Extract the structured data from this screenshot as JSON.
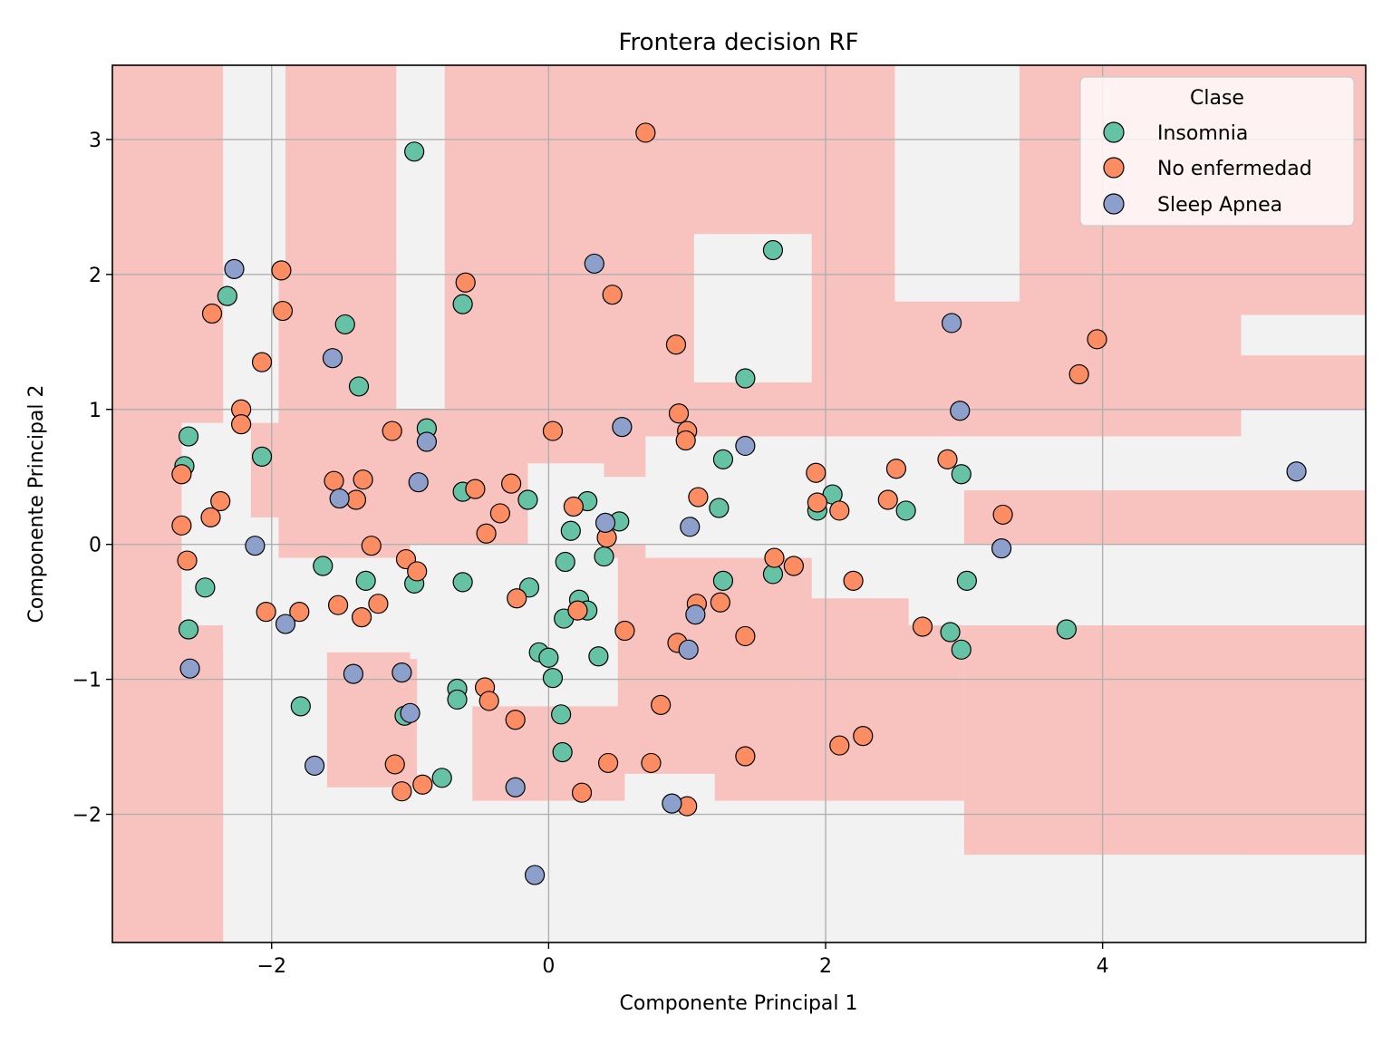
{
  "chart_data": {
    "type": "scatter",
    "title": "Frontera decision RF",
    "xlabel": "Componente Principal 1",
    "ylabel": "Componente Principal 2",
    "xlim": [
      -3.15,
      5.9
    ],
    "ylim": [
      -2.95,
      3.55
    ],
    "xticks": [
      -2,
      0,
      2,
      4
    ],
    "yticks": [
      -2,
      -1,
      0,
      1,
      2,
      3
    ],
    "xtick_labels": [
      "−2",
      "0",
      "2",
      "4"
    ],
    "ytick_labels": [
      "−2",
      "−1",
      "0",
      "1",
      "2",
      "3"
    ],
    "grid": true,
    "legend_title": "Clase",
    "legend_position": "top-right",
    "background": {
      "description_colors": {
        "No enfermedad": "#f8c3be",
        "other": "#f2f2f2"
      },
      "pink_regions": [
        [
          -3.15,
          -2.35,
          -2.95,
          3.55
        ],
        [
          -1.95,
          0.3,
          3.55,
          -0.1
        ],
        [
          -0.35,
          0.7,
          3.55,
          -0.1
        ],
        [
          0.2,
          5.0,
          3.55,
          0.8
        ],
        [
          0.5,
          1.9,
          -0.1,
          -1.7
        ],
        [
          1.2,
          3.0,
          -0.4,
          -1.9
        ],
        [
          3.0,
          5.9,
          0.4,
          -2.3
        ],
        [
          1.6,
          2.6,
          3.55,
          1.5
        ],
        [
          3.4,
          5.9,
          3.55,
          1.0
        ],
        [
          -1.6,
          -0.95,
          -0.6,
          -1.8
        ],
        [
          -0.55,
          0.55,
          -1.2,
          -1.9
        ],
        [
          -2.55,
          -1.2,
          0.9,
          0.2
        ]
      ],
      "grey_regions": [
        [
          -2.65,
          -2.15,
          0.9,
          -0.6
        ],
        [
          -2.35,
          -0.85,
          -0.1,
          -0.8
        ],
        [
          -0.15,
          0.4,
          0.6,
          -0.9
        ],
        [
          0.3,
          2.6,
          0.5,
          0.0
        ],
        [
          2.6,
          5.9,
          0.0,
          -0.6
        ],
        [
          5.0,
          5.9,
          1.7,
          1.4
        ],
        [
          2.5,
          3.4,
          3.55,
          1.8
        ],
        [
          -2.35,
          -1.9,
          3.55,
          2.1
        ],
        [
          -1.1,
          -0.75,
          3.55,
          1.0
        ],
        [
          -0.95,
          -0.6,
          -1.25,
          -2.95
        ],
        [
          -0.3,
          0.55,
          -1.9,
          -2.95
        ],
        [
          3.1,
          5.0,
          -2.3,
          -2.95
        ],
        [
          1.05,
          1.9,
          2.3,
          1.2
        ],
        [
          -1.0,
          -0.1,
          0.0,
          -0.85
        ]
      ]
    },
    "series": [
      {
        "name": "Insomnia",
        "color": "#66c2a5",
        "points": [
          [
            -0.97,
            2.91
          ],
          [
            1.62,
            2.18
          ],
          [
            -2.32,
            1.84
          ],
          [
            -0.62,
            1.78
          ],
          [
            -1.47,
            1.63
          ],
          [
            -1.37,
            1.17
          ],
          [
            1.42,
            1.23
          ],
          [
            -2.6,
            0.8
          ],
          [
            -0.88,
            0.86
          ],
          [
            -2.63,
            0.58
          ],
          [
            -2.07,
            0.65
          ],
          [
            1.26,
            0.63
          ],
          [
            2.98,
            0.52
          ],
          [
            -0.62,
            0.39
          ],
          [
            -0.15,
            0.33
          ],
          [
            0.28,
            0.32
          ],
          [
            2.05,
            0.37
          ],
          [
            1.23,
            0.27
          ],
          [
            1.94,
            0.25
          ],
          [
            2.58,
            0.25
          ],
          [
            0.51,
            0.17
          ],
          [
            0.16,
            0.1
          ],
          [
            -1.63,
            -0.16
          ],
          [
            0.12,
            -0.13
          ],
          [
            0.4,
            -0.09
          ],
          [
            -1.32,
            -0.27
          ],
          [
            -0.97,
            -0.29
          ],
          [
            -0.62,
            -0.28
          ],
          [
            1.26,
            -0.27
          ],
          [
            1.62,
            -0.22
          ],
          [
            3.02,
            -0.27
          ],
          [
            -2.48,
            -0.32
          ],
          [
            -0.14,
            -0.32
          ],
          [
            0.22,
            -0.41
          ],
          [
            0.28,
            -0.49
          ],
          [
            0.11,
            -0.55
          ],
          [
            -2.6,
            -0.63
          ],
          [
            2.9,
            -0.65
          ],
          [
            3.74,
            -0.63
          ],
          [
            2.98,
            -0.78
          ],
          [
            0.36,
            -0.83
          ],
          [
            -0.07,
            -0.8
          ],
          [
            0.0,
            -0.84
          ],
          [
            0.03,
            -0.99
          ],
          [
            -0.66,
            -1.07
          ],
          [
            -0.66,
            -1.15
          ],
          [
            -1.79,
            -1.2
          ],
          [
            -1.04,
            -1.27
          ],
          [
            0.09,
            -1.26
          ],
          [
            0.1,
            -1.54
          ],
          [
            -0.77,
            -1.73
          ]
        ]
      },
      {
        "name": "No enfermedad",
        "color": "#fc8d62",
        "points": [
          [
            0.7,
            3.05
          ],
          [
            -1.93,
            2.03
          ],
          [
            -0.6,
            1.94
          ],
          [
            0.46,
            1.85
          ],
          [
            -2.43,
            1.71
          ],
          [
            -1.92,
            1.73
          ],
          [
            0.92,
            1.48
          ],
          [
            3.96,
            1.52
          ],
          [
            -2.07,
            1.35
          ],
          [
            3.83,
            1.26
          ],
          [
            -2.22,
            1.0
          ],
          [
            0.94,
            0.97
          ],
          [
            -2.22,
            0.89
          ],
          [
            1.0,
            0.84
          ],
          [
            -1.13,
            0.84
          ],
          [
            0.03,
            0.84
          ],
          [
            0.99,
            0.77
          ],
          [
            2.88,
            0.63
          ],
          [
            1.93,
            0.53
          ],
          [
            2.51,
            0.56
          ],
          [
            -2.65,
            0.52
          ],
          [
            -1.55,
            0.47
          ],
          [
            -1.34,
            0.48
          ],
          [
            -0.53,
            0.41
          ],
          [
            -0.27,
            0.45
          ],
          [
            1.08,
            0.35
          ],
          [
            -2.37,
            0.32
          ],
          [
            -1.39,
            0.33
          ],
          [
            2.45,
            0.33
          ],
          [
            1.94,
            0.31
          ],
          [
            0.18,
            0.28
          ],
          [
            2.1,
            0.25
          ],
          [
            -0.35,
            0.23
          ],
          [
            3.28,
            0.22
          ],
          [
            -2.44,
            0.2
          ],
          [
            -2.65,
            0.14
          ],
          [
            -0.45,
            0.08
          ],
          [
            0.42,
            0.05
          ],
          [
            -1.28,
            -0.01
          ],
          [
            1.63,
            -0.1
          ],
          [
            -1.03,
            -0.11
          ],
          [
            -2.61,
            -0.12
          ],
          [
            1.77,
            -0.16
          ],
          [
            -0.95,
            -0.2
          ],
          [
            2.2,
            -0.27
          ],
          [
            -0.23,
            -0.4
          ],
          [
            -1.23,
            -0.44
          ],
          [
            -1.52,
            -0.45
          ],
          [
            1.24,
            -0.43
          ],
          [
            1.07,
            -0.44
          ],
          [
            0.21,
            -0.49
          ],
          [
            -2.04,
            -0.5
          ],
          [
            -1.8,
            -0.5
          ],
          [
            -1.35,
            -0.54
          ],
          [
            0.55,
            -0.64
          ],
          [
            2.7,
            -0.61
          ],
          [
            1.42,
            -0.68
          ],
          [
            0.93,
            -0.73
          ],
          [
            -0.46,
            -1.06
          ],
          [
            -0.43,
            -1.16
          ],
          [
            0.81,
            -1.19
          ],
          [
            -0.24,
            -1.3
          ],
          [
            2.27,
            -1.42
          ],
          [
            2.1,
            -1.49
          ],
          [
            1.42,
            -1.57
          ],
          [
            -1.11,
            -1.63
          ],
          [
            0.43,
            -1.62
          ],
          [
            0.74,
            -1.62
          ],
          [
            -0.91,
            -1.78
          ],
          [
            -1.06,
            -1.83
          ],
          [
            0.24,
            -1.84
          ],
          [
            1.0,
            -1.94
          ]
        ]
      },
      {
        "name": "Sleep Apnea",
        "color": "#8da0cb",
        "points": [
          [
            -2.27,
            2.04
          ],
          [
            0.33,
            2.08
          ],
          [
            2.91,
            1.64
          ],
          [
            -1.56,
            1.38
          ],
          [
            2.97,
            0.99
          ],
          [
            0.53,
            0.87
          ],
          [
            -0.88,
            0.76
          ],
          [
            1.42,
            0.73
          ],
          [
            -0.94,
            0.46
          ],
          [
            5.4,
            0.54
          ],
          [
            -1.51,
            0.34
          ],
          [
            0.41,
            0.16
          ],
          [
            1.02,
            0.13
          ],
          [
            -2.12,
            -0.01
          ],
          [
            3.27,
            -0.03
          ],
          [
            1.06,
            -0.52
          ],
          [
            -1.9,
            -0.59
          ],
          [
            1.01,
            -0.78
          ],
          [
            -2.59,
            -0.92
          ],
          [
            -1.41,
            -0.96
          ],
          [
            -1.06,
            -0.95
          ],
          [
            -1.0,
            -1.25
          ],
          [
            -1.69,
            -1.64
          ],
          [
            -0.24,
            -1.8
          ],
          [
            0.89,
            -1.92
          ],
          [
            -0.1,
            -2.45
          ]
        ]
      }
    ]
  }
}
